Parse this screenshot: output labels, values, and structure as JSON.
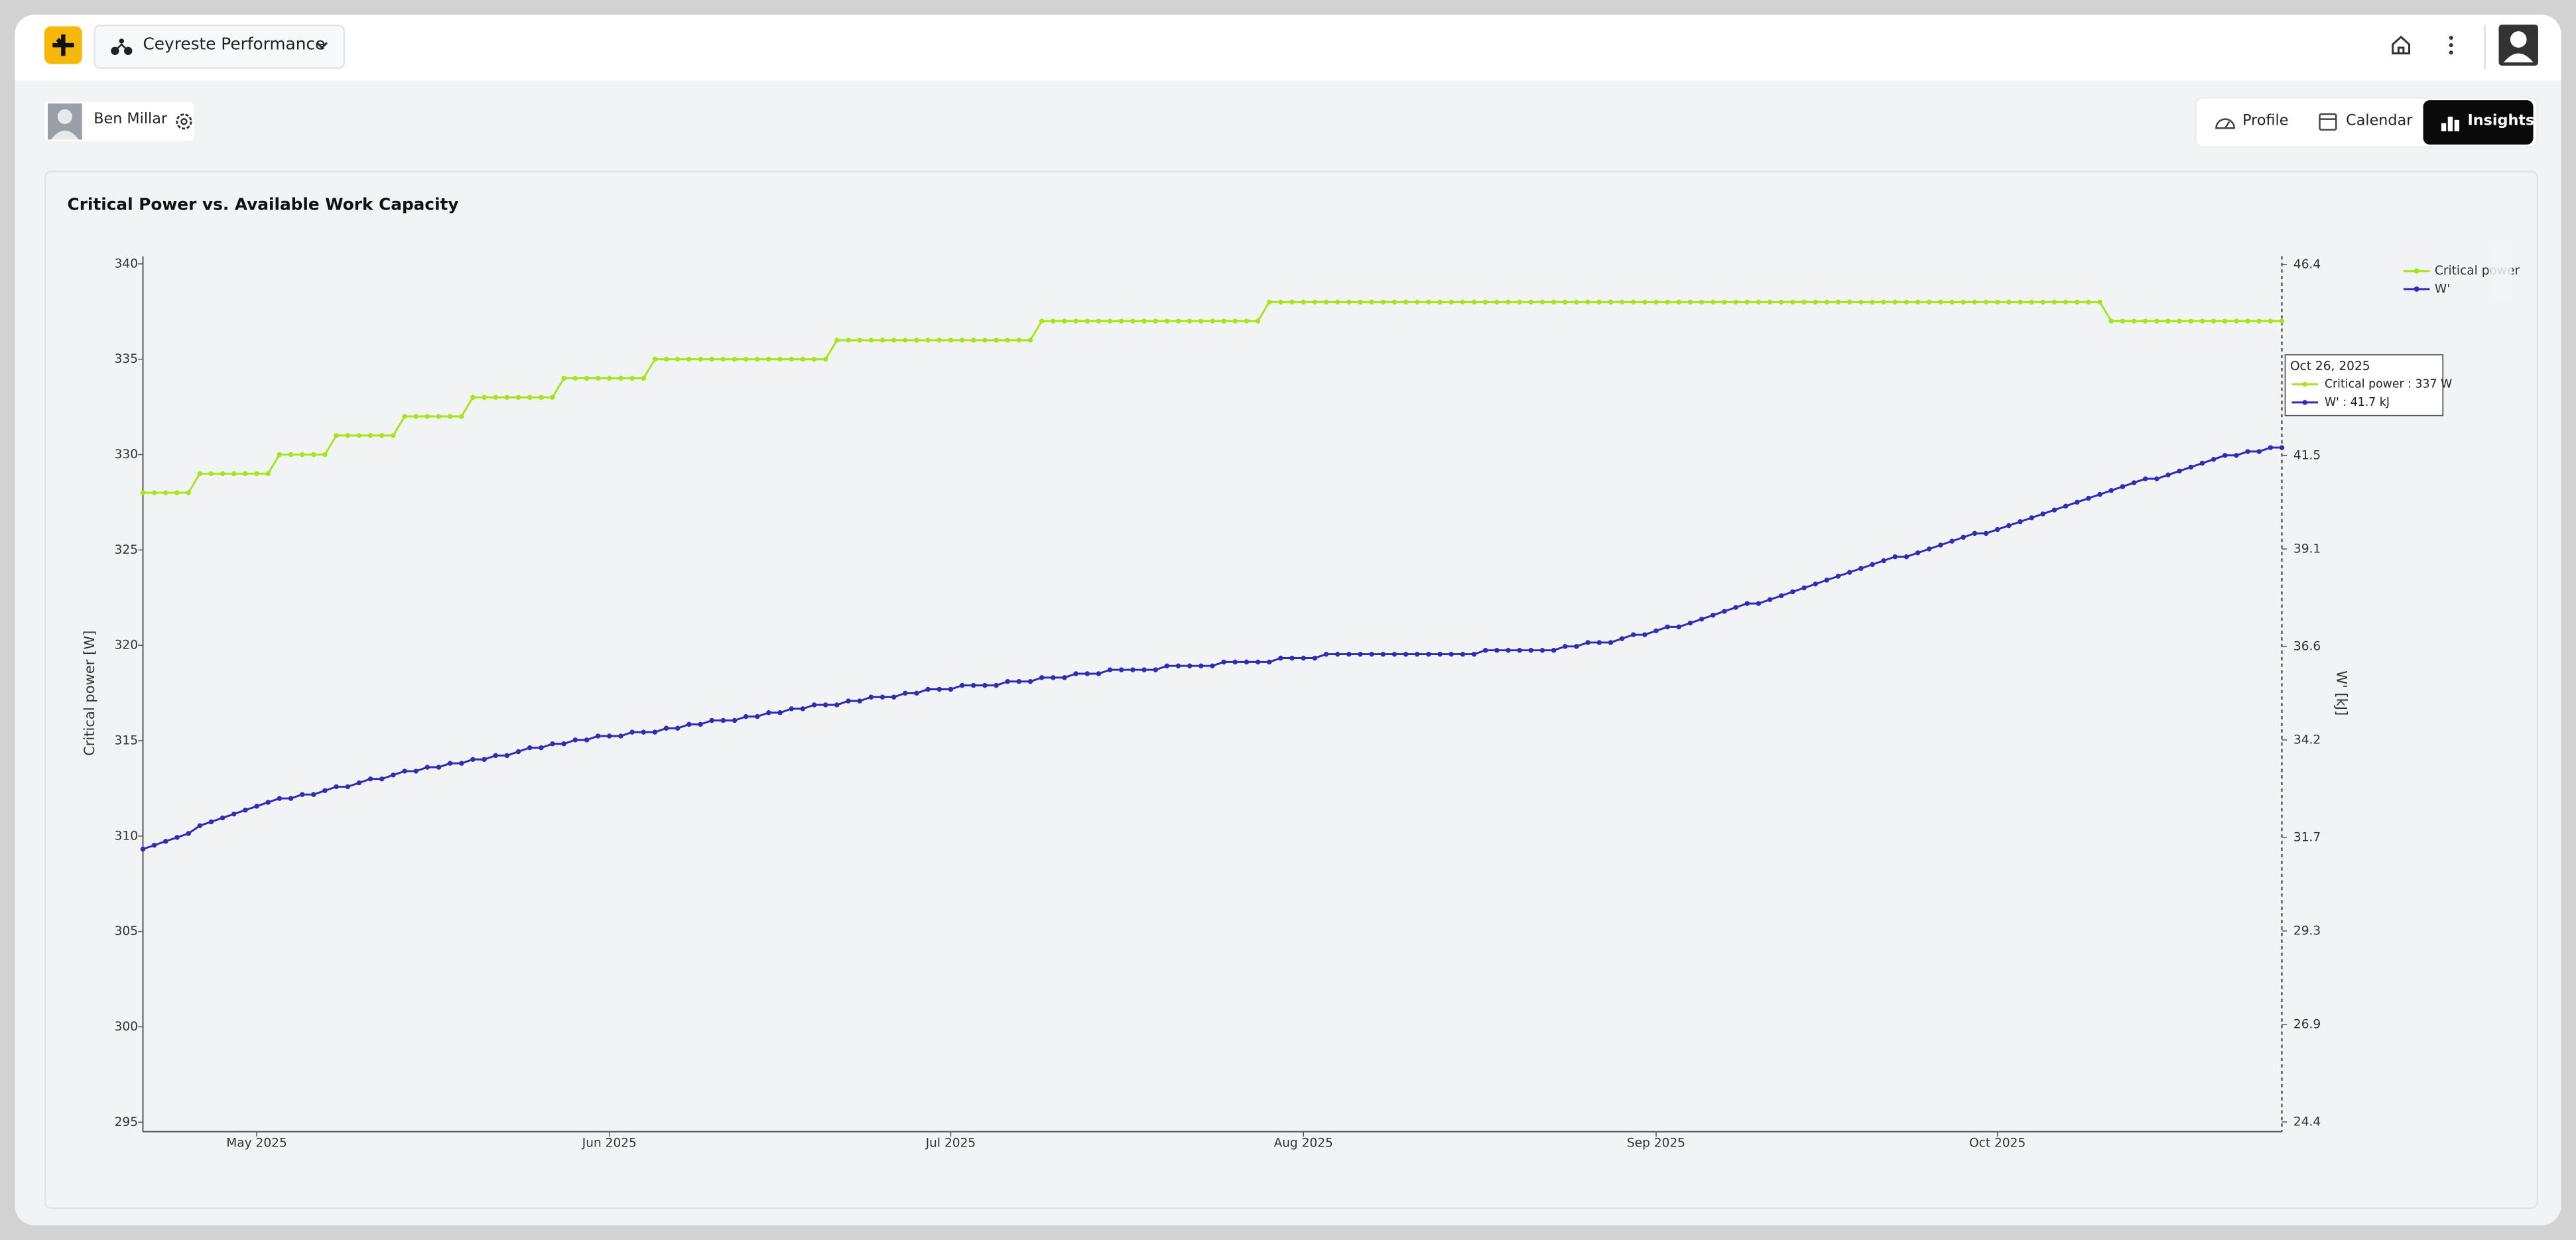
{
  "header": {
    "workspace": "Ceyreste Performance"
  },
  "user": {
    "name": "Ben Millar"
  },
  "tabs": [
    "Profile",
    "Calendar",
    "Insights"
  ],
  "chart_data": {
    "type": "line",
    "title": "Critical Power vs. Available Work Capacity",
    "ylabel": "Critical power [W]",
    "y2label": "W' [kJ]",
    "legend": "top right",
    "x": [
      "2025-04-21",
      "2025-04-22",
      "2025-04-23",
      "2025-04-24",
      "2025-04-25",
      "2025-04-26",
      "2025-04-27",
      "2025-04-28",
      "2025-04-29",
      "2025-04-30",
      "2025-05-01",
      "2025-05-02",
      "2025-05-03",
      "2025-05-04",
      "2025-05-05",
      "2025-05-06",
      "2025-05-07",
      "2025-05-08",
      "2025-05-09",
      "2025-05-10",
      "2025-05-11",
      "2025-05-12",
      "2025-05-13",
      "2025-05-14",
      "2025-05-15",
      "2025-05-16",
      "2025-05-17",
      "2025-05-18",
      "2025-05-19",
      "2025-05-20",
      "2025-05-21",
      "2025-05-22",
      "2025-05-23",
      "2025-05-24",
      "2025-05-25",
      "2025-05-26",
      "2025-05-27",
      "2025-05-28",
      "2025-05-29",
      "2025-05-30",
      "2025-05-31",
      "2025-06-01",
      "2025-06-02",
      "2025-06-03",
      "2025-06-04",
      "2025-06-05",
      "2025-06-06",
      "2025-06-07",
      "2025-06-08",
      "2025-06-09",
      "2025-06-10",
      "2025-06-11",
      "2025-06-12",
      "2025-06-13",
      "2025-06-14",
      "2025-06-15",
      "2025-06-16",
      "2025-06-17",
      "2025-06-18",
      "2025-06-19",
      "2025-06-20",
      "2025-06-21",
      "2025-06-22",
      "2025-06-23",
      "2025-06-24",
      "2025-06-25",
      "2025-06-26",
      "2025-06-27",
      "2025-06-28",
      "2025-06-29",
      "2025-06-30",
      "2025-07-01",
      "2025-07-02",
      "2025-07-03",
      "2025-07-04",
      "2025-07-05",
      "2025-07-06",
      "2025-07-07",
      "2025-07-08",
      "2025-07-09",
      "2025-07-10",
      "2025-07-11",
      "2025-07-12",
      "2025-07-13",
      "2025-07-14",
      "2025-07-15",
      "2025-07-16",
      "2025-07-17",
      "2025-07-18",
      "2025-07-19",
      "2025-07-20",
      "2025-07-21",
      "2025-07-22",
      "2025-07-23",
      "2025-07-24",
      "2025-07-25",
      "2025-07-26",
      "2025-07-27",
      "2025-07-28",
      "2025-07-29",
      "2025-07-30",
      "2025-07-31",
      "2025-08-01",
      "2025-08-02",
      "2025-08-03",
      "2025-08-04",
      "2025-08-05",
      "2025-08-06",
      "2025-08-07",
      "2025-08-08",
      "2025-08-09",
      "2025-08-10",
      "2025-08-11",
      "2025-08-12",
      "2025-08-13",
      "2025-08-14",
      "2025-08-15",
      "2025-08-16",
      "2025-08-17",
      "2025-08-18",
      "2025-08-19",
      "2025-08-20",
      "2025-08-21",
      "2025-08-22",
      "2025-08-23",
      "2025-08-24",
      "2025-08-25",
      "2025-08-26",
      "2025-08-27",
      "2025-08-28",
      "2025-08-29",
      "2025-08-30",
      "2025-08-31",
      "2025-09-01",
      "2025-09-02",
      "2025-09-03",
      "2025-09-04",
      "2025-09-05",
      "2025-09-06",
      "2025-09-07",
      "2025-09-08",
      "2025-09-09",
      "2025-09-10",
      "2025-09-11",
      "2025-09-12",
      "2025-09-13",
      "2025-09-14",
      "2025-09-15",
      "2025-09-16",
      "2025-09-17",
      "2025-09-18",
      "2025-09-19",
      "2025-09-20",
      "2025-09-21",
      "2025-09-22",
      "2025-09-23",
      "2025-09-24",
      "2025-09-25",
      "2025-09-26",
      "2025-09-27",
      "2025-09-28",
      "2025-09-29",
      "2025-09-30",
      "2025-10-01",
      "2025-10-02",
      "2025-10-03",
      "2025-10-04",
      "2025-10-05",
      "2025-10-06",
      "2025-10-07",
      "2025-10-08",
      "2025-10-09",
      "2025-10-10",
      "2025-10-11",
      "2025-10-12",
      "2025-10-13",
      "2025-10-14",
      "2025-10-15",
      "2025-10-16",
      "2025-10-17",
      "2025-10-18",
      "2025-10-19",
      "2025-10-20",
      "2025-10-21",
      "2025-10-22",
      "2025-10-23",
      "2025-10-24",
      "2025-10-25",
      "2025-10-26"
    ],
    "series": [
      {
        "name": "Critical power",
        "color": "#a5e61a",
        "axis": "y",
        "values": [
          328,
          328,
          328,
          328,
          328,
          329,
          329,
          329,
          329,
          329,
          329,
          329,
          330,
          330,
          330,
          330,
          330,
          331,
          331,
          331,
          331,
          331,
          331,
          332,
          332,
          332,
          332,
          332,
          332,
          333,
          333,
          333,
          333,
          333,
          333,
          333,
          333,
          334,
          334,
          334,
          334,
          334,
          334,
          334,
          334,
          335,
          335,
          335,
          335,
          335,
          335,
          335,
          335,
          335,
          335,
          335,
          335,
          335,
          335,
          335,
          335,
          336,
          336,
          336,
          336,
          336,
          336,
          336,
          336,
          336,
          336,
          336,
          336,
          336,
          336,
          336,
          336,
          336,
          336,
          337,
          337,
          337,
          337,
          337,
          337,
          337,
          337,
          337,
          337,
          337,
          337,
          337,
          337,
          337,
          337,
          337,
          337,
          337,
          337,
          338,
          338,
          338,
          338,
          338,
          338,
          338,
          338,
          338,
          338,
          338,
          338,
          338,
          338,
          338,
          338,
          338,
          338,
          338,
          338,
          338,
          338,
          338,
          338,
          338,
          338,
          338,
          338,
          338,
          338,
          338,
          338,
          338,
          338,
          338,
          338,
          338,
          338,
          338,
          338,
          338,
          338,
          338,
          338,
          338,
          338,
          338,
          338,
          338,
          338,
          338,
          338,
          338,
          338,
          338,
          338,
          338,
          338,
          338,
          338,
          338,
          338,
          338,
          338,
          338,
          338,
          338,
          338,
          338,
          338,
          338,
          338,
          338,
          338,
          337,
          337,
          337,
          337,
          337,
          337,
          337,
          337,
          337,
          337,
          337,
          337,
          337,
          337,
          337,
          337
        ]
      },
      {
        "name": "W'",
        "color": "#2e2eb2",
        "axis": "y2",
        "values": [
          31.4,
          31.5,
          31.6,
          31.7,
          31.8,
          32.0,
          32.1,
          32.2,
          32.3,
          32.4,
          32.5,
          32.6,
          32.7,
          32.7,
          32.8,
          32.8,
          32.9,
          33.0,
          33.0,
          33.1,
          33.2,
          33.2,
          33.3,
          33.4,
          33.4,
          33.5,
          33.5,
          33.6,
          33.6,
          33.7,
          33.7,
          33.8,
          33.8,
          33.9,
          34.0,
          34.0,
          34.1,
          34.1,
          34.2,
          34.2,
          34.3,
          34.3,
          34.3,
          34.4,
          34.4,
          34.4,
          34.5,
          34.5,
          34.6,
          34.6,
          34.7,
          34.7,
          34.7,
          34.8,
          34.8,
          34.9,
          34.9,
          35.0,
          35.0,
          35.1,
          35.1,
          35.1,
          35.2,
          35.2,
          35.3,
          35.3,
          35.3,
          35.4,
          35.4,
          35.5,
          35.5,
          35.5,
          35.6,
          35.6,
          35.6,
          35.6,
          35.7,
          35.7,
          35.7,
          35.8,
          35.8,
          35.8,
          35.9,
          35.9,
          35.9,
          36.0,
          36.0,
          36.0,
          36.0,
          36.0,
          36.1,
          36.1,
          36.1,
          36.1,
          36.1,
          36.2,
          36.2,
          36.2,
          36.2,
          36.2,
          36.3,
          36.3,
          36.3,
          36.3,
          36.4,
          36.4,
          36.4,
          36.4,
          36.4,
          36.4,
          36.4,
          36.4,
          36.4,
          36.4,
          36.4,
          36.4,
          36.4,
          36.4,
          36.5,
          36.5,
          36.5,
          36.5,
          36.5,
          36.5,
          36.5,
          36.6,
          36.6,
          36.7,
          36.7,
          36.7,
          36.8,
          36.9,
          36.9,
          37.0,
          37.1,
          37.1,
          37.2,
          37.3,
          37.4,
          37.5,
          37.6,
          37.7,
          37.7,
          37.8,
          37.9,
          38.0,
          38.1,
          38.2,
          38.3,
          38.4,
          38.5,
          38.6,
          38.7,
          38.8,
          38.9,
          38.9,
          39.0,
          39.1,
          39.2,
          39.3,
          39.4,
          39.5,
          39.5,
          39.6,
          39.7,
          39.8,
          39.9,
          40.0,
          40.1,
          40.2,
          40.3,
          40.4,
          40.5,
          40.6,
          40.7,
          40.8,
          40.9,
          40.9,
          41.0,
          41.1,
          41.2,
          41.3,
          41.4,
          41.5,
          41.5,
          41.6,
          41.6,
          41.7,
          41.7
        ]
      }
    ],
    "xlim": [
      "2025-04-21",
      "2025-10-26"
    ],
    "xticks": [
      {
        "value": "2025-05-01",
        "label": "May 2025"
      },
      {
        "value": "2025-06-01",
        "label": "Jun 2025"
      },
      {
        "value": "2025-07-01",
        "label": "Jul 2025"
      },
      {
        "value": "2025-08-01",
        "label": "Aug 2025"
      },
      {
        "value": "2025-09-01",
        "label": "Sep 2025"
      },
      {
        "value": "2025-10-01",
        "label": "Oct 2025"
      }
    ],
    "ylim": [
      294.5,
      340.4
    ],
    "yticks": [
      295,
      300,
      305,
      310,
      315,
      320,
      325,
      330,
      335,
      340
    ],
    "y2lim": [
      24.15,
      46.61
    ],
    "y2ticks": [
      24.4,
      26.9,
      29.3,
      31.7,
      34.2,
      36.6,
      39.1,
      41.5,
      46.4
    ],
    "tooltip": {
      "date": "Oct 26, 2025",
      "items": [
        "Critical power : 337 W",
        "W' : 41.7 kJ"
      ]
    }
  }
}
